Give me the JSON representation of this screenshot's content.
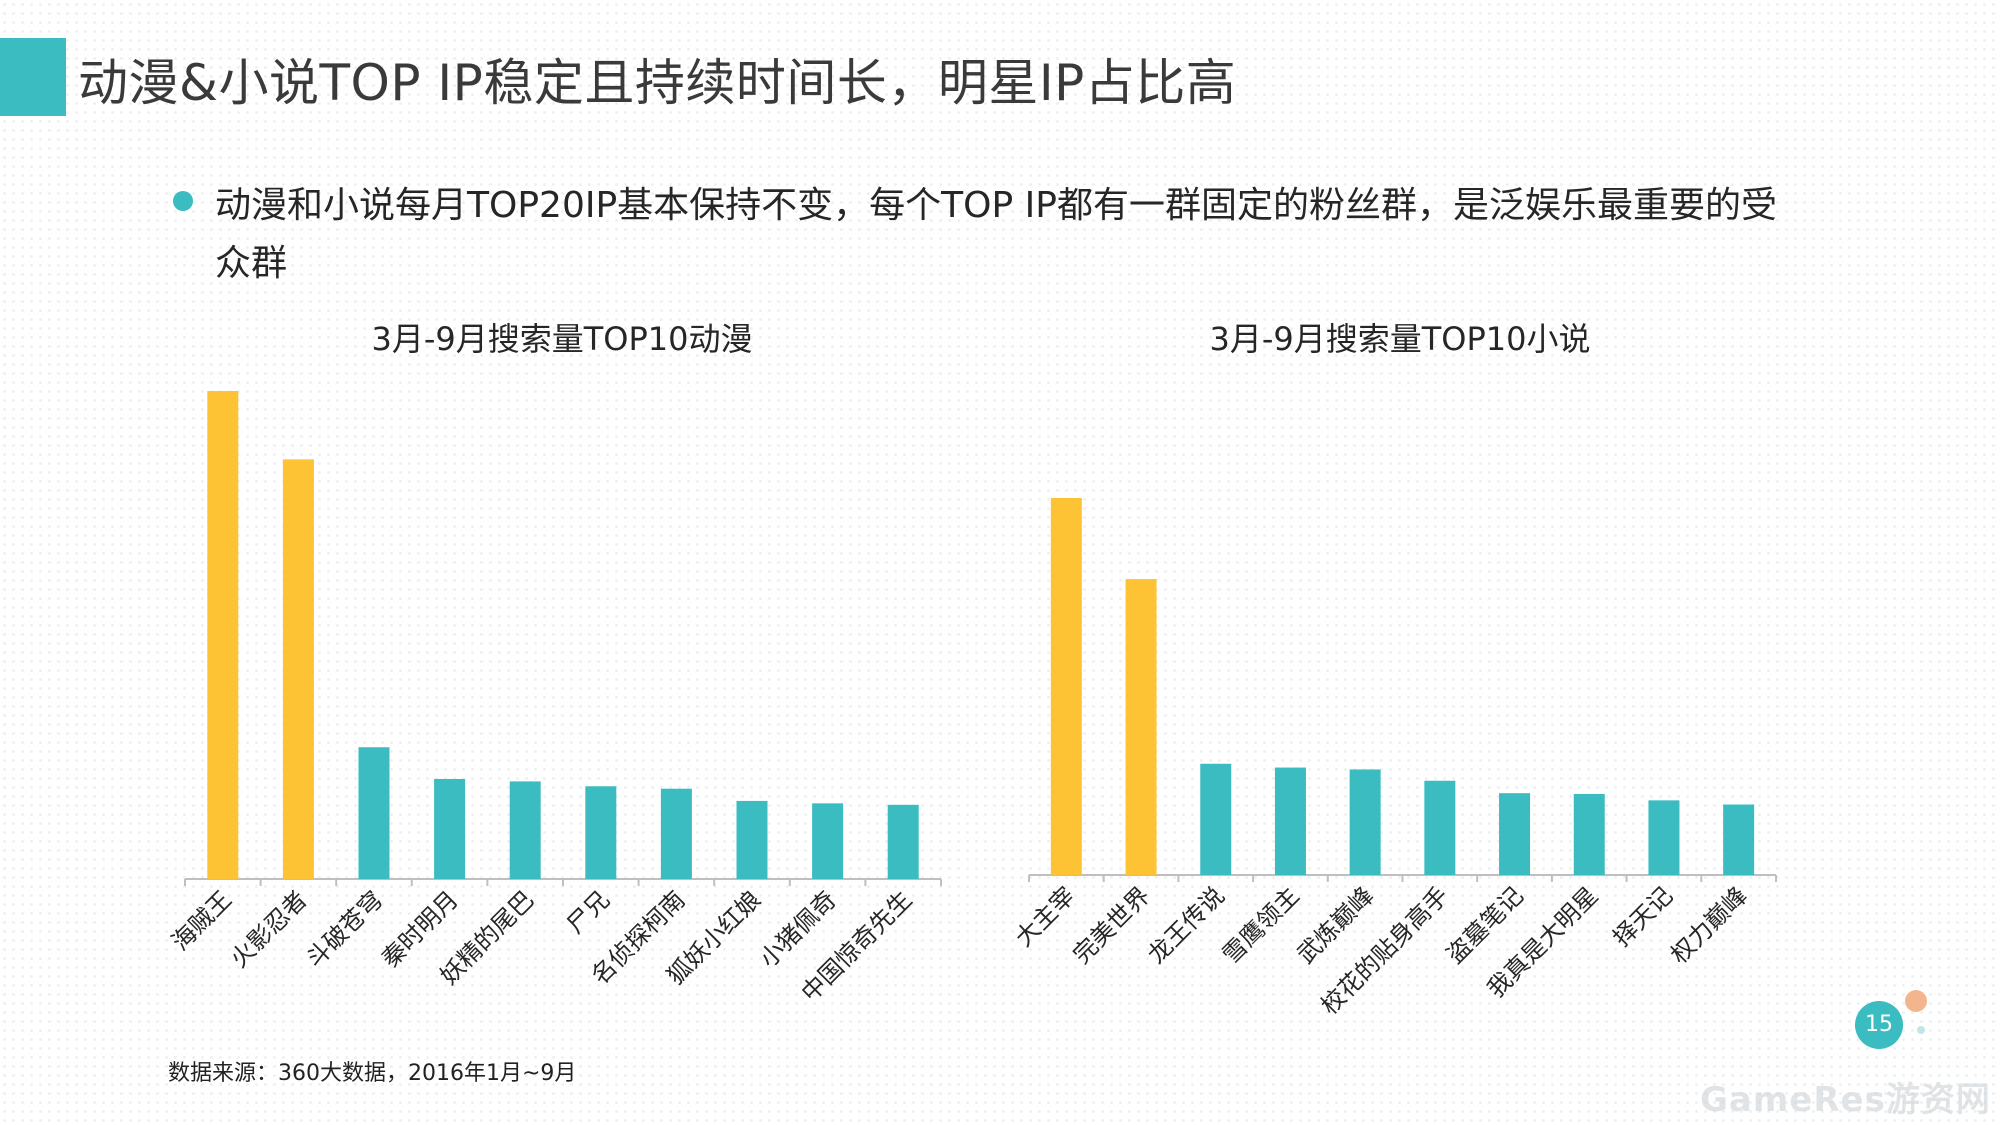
{
  "header": {
    "title": "动漫&小说TOP IP稳定且持续时间长，明星IP占比高"
  },
  "bullet": {
    "text": "动漫和小说每月TOP20IP基本保持不变，每个TOP IP都有一群固定的粉丝群，是泛娱乐最重要的受众群"
  },
  "colors": {
    "accent": "#3bbcc1",
    "highlight": "#fdc334",
    "axis": "#bfbfbf"
  },
  "chart_data": [
    {
      "type": "bar",
      "title": "3月-9月搜索量TOP10动漫",
      "categories": [
        "海贼王",
        "火影忍者",
        "斗破苍穹",
        "秦时明月",
        "妖精的尾巴",
        "尸兄",
        "名侦探柯南",
        "狐妖小红娘",
        "小猪佩奇",
        "中国惊奇先生"
      ],
      "values": [
        100,
        86,
        27,
        20.5,
        20,
        19,
        18.5,
        16,
        15.5,
        15.2
      ],
      "highlighted": [
        0,
        1
      ],
      "ylim": [
        0,
        100
      ],
      "xlabel": "",
      "ylabel": "",
      "grid": false,
      "value_unit": "relative search volume (no axis printed)"
    },
    {
      "type": "bar",
      "title": "3月-9月搜索量TOP10小说",
      "categories": [
        "大主宰",
        "完美世界",
        "龙王传说",
        "雪鹰领主",
        "武炼巅峰",
        "校花的贴身高手",
        "盗墓笔记",
        "我真是大明星",
        "择天记",
        "权力巅峰"
      ],
      "values": [
        100,
        78.5,
        29.5,
        28.5,
        28,
        25,
        21.7,
        21.5,
        19.8,
        18.7
      ],
      "highlighted": [
        0,
        1
      ],
      "ylim": [
        0,
        100
      ],
      "xlabel": "",
      "ylabel": "",
      "grid": false,
      "value_unit": "relative search volume (no axis printed)"
    }
  ],
  "footer": {
    "source": "数据来源：360大数据，2016年1月~9月",
    "page_number": "15",
    "watermark": "GameRes游资网"
  }
}
